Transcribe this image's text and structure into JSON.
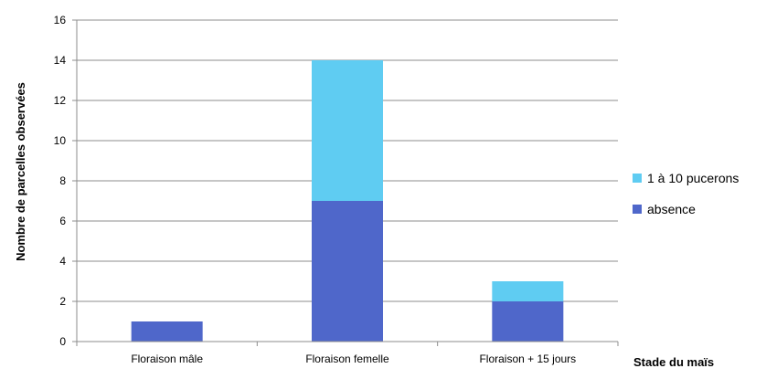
{
  "chart_data": {
    "type": "bar",
    "stacked": true,
    "categories": [
      "Floraison mâle",
      "Floraison femelle",
      "Floraison + 15 jours"
    ],
    "series": [
      {
        "name": "absence",
        "values": [
          1,
          7,
          2
        ],
        "color": "#4F67CA"
      },
      {
        "name": "1 à 10 pucerons",
        "values": [
          0,
          7,
          1
        ],
        "color": "#5FCCF2"
      }
    ],
    "legend_order": [
      "1 à 10 pucerons",
      "absence"
    ],
    "xlabel": "Stade du maïs",
    "ylabel": "Nombre de parcelles observées",
    "ylim": [
      0,
      16
    ],
    "yticks": [
      0,
      2,
      4,
      6,
      8,
      10,
      12,
      14,
      16
    ],
    "grid": true,
    "legend_position": "right"
  }
}
